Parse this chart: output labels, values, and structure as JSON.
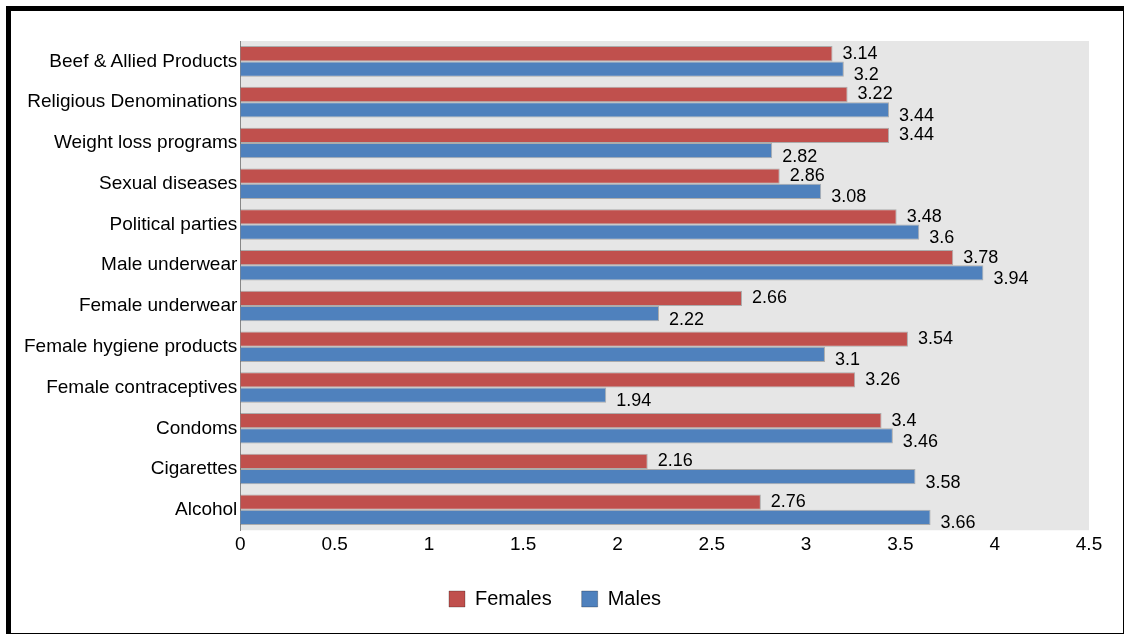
{
  "chart_data": {
    "type": "bar",
    "orientation": "horizontal",
    "categories": [
      "Beef & Allied Products",
      "Religious Denominations",
      "Weight loss programs",
      "Sexual diseases",
      "Political parties",
      "Male underwear",
      "Female underwear",
      "Female hygiene products",
      "Female contraceptives",
      "Condoms",
      "Cigarettes",
      "Alcohol"
    ],
    "series": [
      {
        "name": "Females",
        "color": "#c0504d",
        "values": [
          3.14,
          3.22,
          3.44,
          2.86,
          3.48,
          3.78,
          2.66,
          3.54,
          3.26,
          3.4,
          2.16,
          2.76
        ]
      },
      {
        "name": "Males",
        "color": "#4f81bd",
        "values": [
          3.2,
          3.44,
          2.82,
          3.08,
          3.6,
          3.94,
          2.22,
          3.1,
          1.94,
          3.46,
          3.58,
          3.66
        ]
      }
    ],
    "xlim": [
      0,
      4.5
    ],
    "xticks": [
      0,
      0.5,
      1,
      1.5,
      2,
      2.5,
      3,
      3.5,
      4,
      4.5
    ],
    "grid": false,
    "legend": "bottom",
    "data_labels": true
  }
}
